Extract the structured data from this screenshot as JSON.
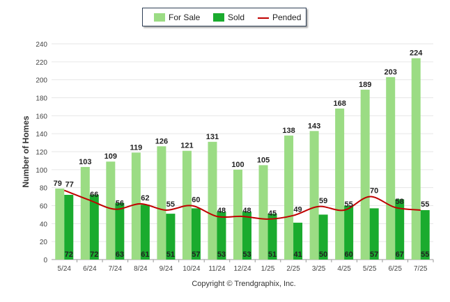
{
  "chart_data": {
    "type": "bar",
    "title": "",
    "xlabel": "",
    "ylabel": "Number of Homes",
    "ylim": [
      0,
      240
    ],
    "yticks": [
      0,
      20,
      40,
      60,
      80,
      100,
      120,
      140,
      160,
      180,
      200,
      220,
      240
    ],
    "grid": true,
    "legend_position": "top-center",
    "categories": [
      "5/24",
      "6/24",
      "7/24",
      "8/24",
      "9/24",
      "10/24",
      "11/24",
      "12/24",
      "1/25",
      "2/25",
      "3/25",
      "4/25",
      "5/25",
      "6/25",
      "7/25"
    ],
    "series": [
      {
        "name": "For Sale",
        "kind": "bar",
        "color": "#9bdc84",
        "values": [
          79,
          103,
          109,
          119,
          126,
          121,
          131,
          100,
          105,
          138,
          143,
          168,
          189,
          203,
          224
        ]
      },
      {
        "name": "Sold",
        "kind": "bar",
        "color": "#1aab2e",
        "values": [
          72,
          72,
          63,
          61,
          51,
          57,
          53,
          53,
          51,
          41,
          50,
          60,
          57,
          67,
          55
        ]
      },
      {
        "name": "Pended",
        "kind": "line",
        "color": "#c00000",
        "values": [
          77,
          66,
          56,
          62,
          55,
          60,
          48,
          48,
          45,
          49,
          59,
          55,
          70,
          58,
          55
        ]
      }
    ]
  },
  "copyright": "Copyright © Trendgraphix, Inc.",
  "colors": {
    "grid": "#e6e6e6",
    "axis": "#999999",
    "label": "#222222",
    "legend_border": "#2f3f55"
  }
}
